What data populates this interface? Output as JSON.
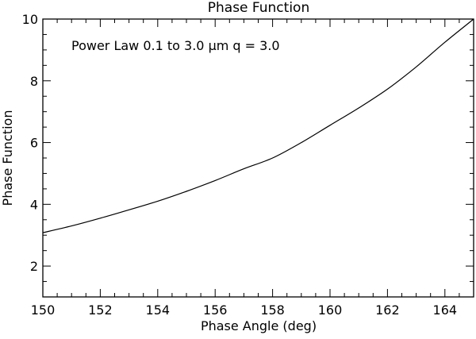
{
  "chart_data": {
    "type": "line",
    "title": "Phase Function",
    "xlabel": "Phase Angle (deg)",
    "ylabel": "Phase Function",
    "xlim": [
      150,
      165
    ],
    "ylim": [
      1,
      10
    ],
    "x_ticks": [
      150,
      152,
      154,
      156,
      158,
      160,
      162,
      164
    ],
    "y_ticks": [
      2,
      4,
      6,
      8,
      10
    ],
    "grid": false,
    "legend": null,
    "annotation": "Power Law 0.1 to 3.0 μm q = 3.0",
    "series": [
      {
        "name": "Power Law 0.1 to 3.0 μm q = 3.0",
        "x": [
          150,
          151,
          152,
          153,
          154,
          155,
          156,
          157,
          158,
          159,
          160,
          161,
          162,
          163,
          164,
          165
        ],
        "values": [
          3.08,
          3.3,
          3.55,
          3.82,
          4.1,
          4.42,
          4.77,
          5.15,
          5.5,
          6.0,
          6.56,
          7.12,
          7.73,
          8.45,
          9.25,
          10.05
        ]
      }
    ]
  }
}
